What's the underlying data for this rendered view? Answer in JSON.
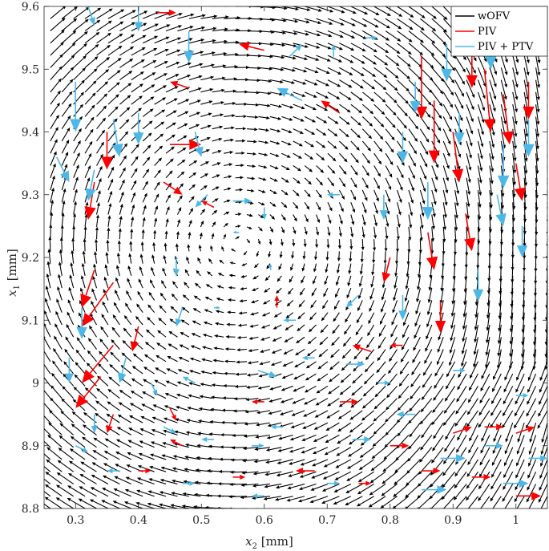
{
  "chart_data": {
    "type": "quiver",
    "xlabel": {
      "base": "x",
      "sub": "2",
      "unit": " [mm]"
    },
    "ylabel": {
      "base": "x",
      "sub": "1",
      "unit": " [mm]"
    },
    "xlim": [
      0.25,
      1.05
    ],
    "ylim": [
      8.8,
      9.6
    ],
    "xticks": [
      {
        "value": 0.3,
        "label": "0.3"
      },
      {
        "value": 0.4,
        "label": "0.4"
      },
      {
        "value": 0.5,
        "label": "0.5"
      },
      {
        "value": 0.6,
        "label": "0.6"
      },
      {
        "value": 0.7,
        "label": "0.7"
      },
      {
        "value": 0.8,
        "label": "0.8"
      },
      {
        "value": 0.9,
        "label": "0.9"
      },
      {
        "value": 1.0,
        "label": "1"
      }
    ],
    "yticks": [
      {
        "value": 8.8,
        "label": "8.8"
      },
      {
        "value": 8.9,
        "label": "8.9"
      },
      {
        "value": 9.0,
        "label": "9"
      },
      {
        "value": 9.1,
        "label": "9.1"
      },
      {
        "value": 9.2,
        "label": "9.2"
      },
      {
        "value": 9.3,
        "label": "9.3"
      },
      {
        "value": 9.4,
        "label": "9.4"
      },
      {
        "value": 9.5,
        "label": "9.5"
      },
      {
        "value": 9.6,
        "label": "9.6"
      }
    ],
    "legend_position": "top-right",
    "series": [
      {
        "name": "wOFV",
        "color": "#000000",
        "field": {
          "vortex_center": [
            0.56,
            9.22
          ],
          "rotation": "clockwise",
          "grid_x": [
            0.26,
            1.05
          ],
          "grid_y": [
            8.8,
            9.6
          ],
          "nx": 44,
          "ny": 42
        }
      },
      {
        "name": "PIV",
        "color": "#ff0000",
        "vectors": [
          [
            0.43,
            9.59,
            0.03,
            0.0
          ],
          [
            0.35,
            9.4,
            0.0,
            -0.06
          ],
          [
            0.33,
            9.32,
            -0.01,
            -0.06
          ],
          [
            0.33,
            9.18,
            -0.02,
            -0.06
          ],
          [
            0.36,
            9.16,
            -0.05,
            -0.07
          ],
          [
            0.36,
            9.06,
            -0.05,
            -0.06
          ],
          [
            0.34,
            9.01,
            -0.04,
            -0.05
          ],
          [
            0.45,
            9.38,
            0.05,
            0.0
          ],
          [
            0.48,
            9.47,
            -0.03,
            0.01
          ],
          [
            0.6,
            9.53,
            -0.04,
            0.01
          ],
          [
            0.44,
            9.32,
            0.03,
            -0.02
          ],
          [
            0.52,
            9.28,
            -0.02,
            0.01
          ],
          [
            0.85,
            9.52,
            0.0,
            -0.1
          ],
          [
            0.87,
            9.45,
            0.0,
            -0.1
          ],
          [
            0.9,
            9.4,
            0.01,
            -0.08
          ],
          [
            0.93,
            9.55,
            0.0,
            -0.08
          ],
          [
            0.95,
            9.5,
            0.01,
            -0.1
          ],
          [
            0.98,
            9.46,
            0.01,
            -0.08
          ],
          [
            1.02,
            9.48,
            0.0,
            -0.06
          ],
          [
            1.0,
            9.35,
            0.01,
            -0.06
          ],
          [
            0.86,
            9.24,
            0.01,
            -0.06
          ],
          [
            0.92,
            9.27,
            0.01,
            -0.06
          ],
          [
            0.88,
            9.13,
            0.0,
            -0.05
          ],
          [
            0.8,
            9.2,
            -0.01,
            -0.04
          ],
          [
            0.4,
            9.09,
            -0.01,
            -0.04
          ],
          [
            0.36,
            8.95,
            -0.01,
            -0.03
          ],
          [
            0.45,
            8.96,
            0.01,
            -0.02
          ],
          [
            0.6,
            8.97,
            -0.02,
            0.0
          ],
          [
            0.72,
            8.97,
            0.03,
            0.0
          ],
          [
            0.77,
            9.05,
            -0.03,
            0.01
          ],
          [
            0.82,
            9.06,
            -0.02,
            0.0
          ],
          [
            0.8,
            8.9,
            0.03,
            0.0
          ],
          [
            0.9,
            8.92,
            0.03,
            0.01
          ],
          [
            0.95,
            8.93,
            0.03,
            0.0
          ],
          [
            1.0,
            8.92,
            0.03,
            0.01
          ],
          [
            0.93,
            8.85,
            0.03,
            0.0
          ],
          [
            1.0,
            8.82,
            0.04,
            0.0
          ],
          [
            0.55,
            8.85,
            0.02,
            0.0
          ],
          [
            0.68,
            8.86,
            -0.03,
            0.0
          ],
          [
            0.4,
            8.86,
            0.02,
            0.0
          ],
          [
            0.47,
            8.9,
            -0.02,
            0.01
          ],
          [
            0.75,
            8.84,
            0.02,
            0.0
          ],
          [
            0.85,
            8.86,
            0.03,
            0.0
          ],
          [
            0.62,
            9.12,
            0.0,
            0.02
          ],
          [
            0.72,
            9.43,
            -0.03,
            0.02
          ]
        ]
      },
      {
        "name": "PIV + PTV",
        "color": "#4db8e8",
        "vectors": [
          [
            0.32,
            9.6,
            0.01,
            -0.03
          ],
          [
            0.4,
            9.6,
            0.0,
            -0.04
          ],
          [
            0.3,
            9.48,
            0.0,
            -0.08
          ],
          [
            0.27,
            9.36,
            0.02,
            -0.04
          ],
          [
            0.33,
            9.34,
            -0.01,
            -0.05
          ],
          [
            0.36,
            9.42,
            0.01,
            -0.06
          ],
          [
            0.31,
            9.12,
            0.0,
            -0.05
          ],
          [
            0.29,
            9.04,
            0.0,
            -0.04
          ],
          [
            0.38,
            9.04,
            -0.01,
            -0.04
          ],
          [
            0.48,
            9.56,
            0.0,
            -0.05
          ],
          [
            0.4,
            9.43,
            0.0,
            -0.05
          ],
          [
            0.49,
            9.4,
            0.01,
            -0.04
          ],
          [
            0.51,
            9.3,
            -0.02,
            -0.02
          ],
          [
            0.55,
            9.29,
            0.03,
            0.0
          ],
          [
            0.6,
            9.28,
            0.0,
            -0.02
          ],
          [
            0.56,
            9.24,
            -0.01,
            0.0
          ],
          [
            0.61,
            9.18,
            0.0,
            0.01
          ],
          [
            0.46,
            9.2,
            0.0,
            -0.03
          ],
          [
            0.47,
            9.12,
            -0.01,
            -0.03
          ],
          [
            0.52,
            9.12,
            0.01,
            0.0
          ],
          [
            0.65,
            9.1,
            -0.02,
            0.0
          ],
          [
            0.75,
            9.14,
            -0.02,
            -0.02
          ],
          [
            0.72,
            9.3,
            -0.02,
            0.0
          ],
          [
            0.66,
            9.45,
            -0.04,
            0.02
          ],
          [
            0.64,
            9.52,
            0.02,
            0.02
          ],
          [
            0.71,
            9.52,
            0.0,
            0.02
          ],
          [
            0.76,
            9.55,
            0.02,
            0.0
          ],
          [
            0.84,
            9.48,
            0.0,
            -0.05
          ],
          [
            0.82,
            9.4,
            0.0,
            -0.05
          ],
          [
            0.79,
            9.3,
            0.0,
            -0.04
          ],
          [
            0.89,
            9.54,
            0.0,
            -0.06
          ],
          [
            0.91,
            9.43,
            0.0,
            -0.05
          ],
          [
            0.96,
            9.56,
            0.0,
            -0.06
          ],
          [
            0.98,
            9.38,
            0.0,
            -0.07
          ],
          [
            1.02,
            9.42,
            0.0,
            -0.06
          ],
          [
            0.97,
            9.3,
            0.01,
            -0.05
          ],
          [
            1.01,
            9.25,
            0.0,
            -0.05
          ],
          [
            0.94,
            9.18,
            0.0,
            -0.05
          ],
          [
            0.86,
            9.32,
            0.0,
            -0.06
          ],
          [
            0.82,
            9.14,
            0.0,
            -0.04
          ],
          [
            0.73,
            9.03,
            0.03,
            0.0
          ],
          [
            0.68,
            9.04,
            -0.02,
            0.0
          ],
          [
            0.59,
            9.02,
            0.03,
            -0.01
          ],
          [
            0.49,
            9.0,
            -0.02,
            0.01
          ],
          [
            0.42,
            9.0,
            0.01,
            -0.02
          ],
          [
            0.33,
            8.95,
            0.0,
            -0.03
          ],
          [
            0.44,
            8.93,
            0.02,
            -0.01
          ],
          [
            0.52,
            8.91,
            -0.02,
            0.0
          ],
          [
            0.58,
            8.9,
            0.02,
            0.0
          ],
          [
            0.63,
            8.93,
            -0.02,
            0.0
          ],
          [
            0.74,
            8.91,
            0.03,
            0.0
          ],
          [
            0.84,
            8.95,
            -0.03,
            0.0
          ],
          [
            0.88,
            8.88,
            0.04,
            0.0
          ],
          [
            0.95,
            8.9,
            0.03,
            0.0
          ],
          [
            1.02,
            8.88,
            0.03,
            0.0
          ],
          [
            0.98,
            8.84,
            0.04,
            0.0
          ],
          [
            0.85,
            8.83,
            0.04,
            0.0
          ],
          [
            0.7,
            8.84,
            0.02,
            0.0
          ],
          [
            0.6,
            8.82,
            -0.02,
            0.0
          ],
          [
            0.47,
            8.84,
            0.02,
            0.0
          ],
          [
            0.37,
            8.86,
            -0.02,
            0.0
          ],
          [
            0.3,
            8.9,
            0.02,
            -0.01
          ],
          [
            0.78,
            9.0,
            0.02,
            0.0
          ],
          [
            0.9,
            9.02,
            0.02,
            0.0
          ],
          [
            1.0,
            8.98,
            0.02,
            0.0
          ]
        ]
      }
    ]
  }
}
